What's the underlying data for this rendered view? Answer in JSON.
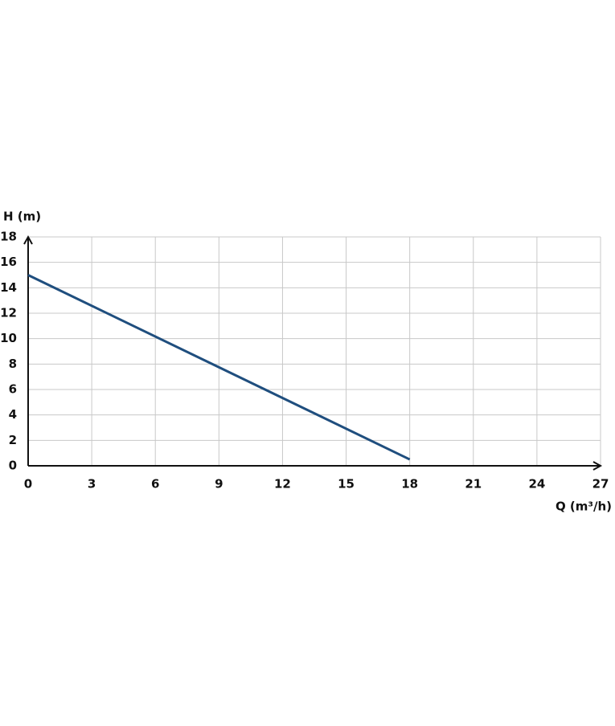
{
  "chart_data": {
    "type": "line",
    "ylabel": "H (m)",
    "xlabel": "Q (m³/h)",
    "x": [
      0,
      18
    ],
    "values": [
      15,
      0.5
    ],
    "color": "#1f4e7e",
    "xlim": [
      0,
      27
    ],
    "xticks": [
      0,
      3,
      6,
      9,
      12,
      15,
      18,
      21,
      24,
      27
    ],
    "ylim": [
      0,
      18
    ],
    "yticks": [
      0,
      2,
      4,
      6,
      8,
      10,
      12,
      14,
      16,
      18
    ],
    "grid": true
  }
}
